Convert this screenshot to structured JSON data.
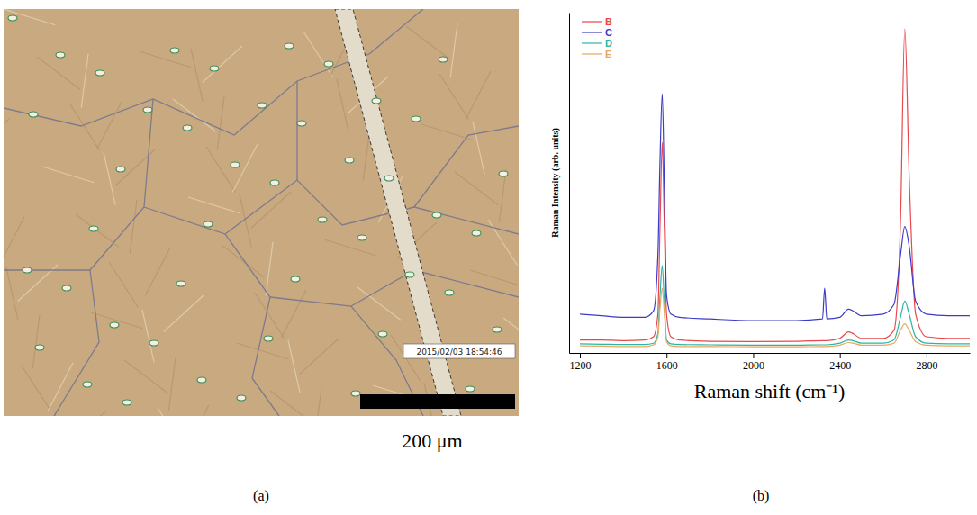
{
  "figure": {
    "panel_labels": [
      "(a)",
      "(b)"
    ]
  },
  "image_panel": {
    "scale_bar_label": "200 μm",
    "timestamp": "2015/02/03 18:54:46"
  },
  "chart_data": {
    "type": "line",
    "x_label": "Raman shift (cm⁻¹)",
    "y_label": "Raman Intensity (arb. units)",
    "x": [
      1200,
      1300,
      1400,
      1500,
      1540,
      1560,
      1570,
      1580,
      1590,
      1600,
      1620,
      1660,
      1800,
      2000,
      2200,
      2320,
      2330,
      2340,
      2400,
      2440,
      2460,
      2500,
      2600,
      2650,
      2680,
      2700,
      2720,
      2750,
      2800,
      2900,
      3000
    ],
    "series": [
      {
        "name": "B",
        "color": "#e8474c",
        "values": [
          4,
          4,
          3.8,
          4,
          5,
          12,
          40,
          65,
          38,
          12,
          5,
          4,
          3.6,
          3.5,
          3.6,
          3.8,
          3.8,
          3.8,
          4.5,
          6.5,
          6,
          4.5,
          4.5,
          7,
          40,
          100,
          55,
          12,
          5,
          4.5,
          4.5
        ]
      },
      {
        "name": "C",
        "color": "#3b3bc8",
        "values": [
          12,
          11.5,
          11,
          11,
          13,
          30,
          60,
          80,
          50,
          18,
          12,
          11,
          10.5,
          10,
          10,
          10.5,
          20,
          10.5,
          11,
          13.5,
          13,
          11.5,
          12,
          15,
          30,
          39,
          33,
          16,
          12,
          11.5,
          11.5
        ]
      },
      {
        "name": "D",
        "color": "#2ab5a5",
        "values": [
          2.8,
          2.7,
          2.6,
          2.6,
          3,
          6,
          18,
          27,
          15,
          4,
          2.8,
          2.6,
          2.5,
          2.4,
          2.4,
          2.5,
          2.5,
          2.5,
          3,
          4,
          3.8,
          3,
          3,
          4,
          11,
          16,
          12,
          5,
          3,
          2.8,
          2.8
        ]
      },
      {
        "name": "E",
        "color": "#e8a860",
        "values": [
          2.2,
          2.1,
          2,
          2,
          2.5,
          5,
          14,
          20,
          12,
          3.5,
          2.2,
          2,
          2,
          1.9,
          1.9,
          2,
          2,
          2,
          2.4,
          3.2,
          3,
          2.4,
          2.4,
          3,
          7,
          9,
          7,
          3.5,
          2.4,
          2.2,
          2.2
        ]
      }
    ],
    "xlim": [
      1150,
      3000
    ],
    "xticks": [
      1200,
      1600,
      2000,
      2400,
      2800
    ],
    "ylim": [
      0,
      105
    ],
    "tick_labels": "x",
    "legend": "top left",
    "grid": false
  }
}
